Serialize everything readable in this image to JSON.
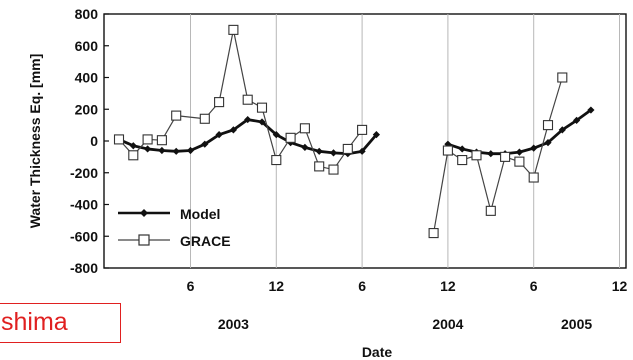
{
  "chart_data": {
    "type": "line",
    "title": "",
    "xlabel": "Date",
    "ylabel": "Water Thickness Eq. [mm]",
    "ylim": [
      -800,
      800
    ],
    "yticks": [
      -800,
      -600,
      -400,
      -200,
      0,
      200,
      400,
      600,
      800
    ],
    "xlim_months": [
      0,
      31
    ],
    "x_ticks": [
      {
        "month": 6,
        "label": "6"
      },
      {
        "month": 12,
        "label": "12"
      },
      {
        "month": 18,
        "label": "6"
      },
      {
        "month": 24,
        "label": "12"
      },
      {
        "month": 30,
        "label": "6"
      },
      {
        "month": 36,
        "label": "12"
      }
    ],
    "year_labels": [
      {
        "month": 9,
        "label": "2003"
      },
      {
        "month": 24,
        "label": "2004"
      },
      {
        "month": 33,
        "label": "2005"
      }
    ],
    "grid": {
      "x": true,
      "y": false
    },
    "legend_position": "bottom-left",
    "series": [
      {
        "name": "Model",
        "marker": "filled-diamond",
        "color": "#111111",
        "segments": [
          [
            {
              "x": "2003-01",
              "y": 10
            },
            {
              "x": "2003-02",
              "y": -30
            },
            {
              "x": "2003-03",
              "y": -50
            },
            {
              "x": "2003-04",
              "y": -60
            },
            {
              "x": "2003-05",
              "y": -65
            },
            {
              "x": "2003-06",
              "y": -60
            },
            {
              "x": "2003-07",
              "y": -20
            },
            {
              "x": "2003-08",
              "y": 40
            },
            {
              "x": "2003-09",
              "y": 70
            },
            {
              "x": "2003-10",
              "y": 135
            },
            {
              "x": "2003-11",
              "y": 120
            },
            {
              "x": "2003-12",
              "y": 40
            },
            {
              "x": "2004-01",
              "y": -10
            },
            {
              "x": "2004-02",
              "y": -40
            },
            {
              "x": "2004-03",
              "y": -65
            },
            {
              "x": "2004-04",
              "y": -75
            },
            {
              "x": "2004-05",
              "y": -80
            },
            {
              "x": "2004-06",
              "y": -65
            },
            {
              "x": "2004-07",
              "y": 40
            }
          ],
          [
            {
              "x": "2004-12",
              "y": -20
            },
            {
              "x": "2005-01",
              "y": -50
            },
            {
              "x": "2005-02",
              "y": -70
            },
            {
              "x": "2005-03",
              "y": -80
            },
            {
              "x": "2005-04",
              "y": -80
            },
            {
              "x": "2005-05",
              "y": -70
            },
            {
              "x": "2005-06",
              "y": -45
            },
            {
              "x": "2005-07",
              "y": -10
            },
            {
              "x": "2005-08",
              "y": 70
            },
            {
              "x": "2005-09",
              "y": 130
            },
            {
              "x": "2005-10",
              "y": 195
            }
          ]
        ]
      },
      {
        "name": "GRACE",
        "marker": "open-square",
        "color": "#444444",
        "segments": [
          [
            {
              "x": "2003-01",
              "y": 10
            },
            {
              "x": "2003-02",
              "y": -90
            },
            {
              "x": "2003-03",
              "y": 10
            },
            {
              "x": "2003-04",
              "y": 5
            },
            {
              "x": "2003-05",
              "y": 160
            },
            {
              "x": "2003-07",
              "y": 140
            },
            {
              "x": "2003-08",
              "y": 245
            },
            {
              "x": "2003-09",
              "y": 700
            },
            {
              "x": "2003-10",
              "y": 260
            },
            {
              "x": "2003-11",
              "y": 210
            },
            {
              "x": "2003-12",
              "y": -120
            },
            {
              "x": "2004-01",
              "y": 20
            },
            {
              "x": "2004-02",
              "y": 80
            },
            {
              "x": "2004-03",
              "y": -160
            },
            {
              "x": "2004-04",
              "y": -180
            },
            {
              "x": "2004-05",
              "y": -50
            },
            {
              "x": "2004-06",
              "y": 70
            }
          ],
          [
            {
              "x": "2004-11",
              "y": -580
            },
            {
              "x": "2004-12",
              "y": -60
            },
            {
              "x": "2005-01",
              "y": -120
            },
            {
              "x": "2005-02",
              "y": -90
            },
            {
              "x": "2005-03",
              "y": -440
            },
            {
              "x": "2005-04",
              "y": -100
            },
            {
              "x": "2005-05",
              "y": -130
            },
            {
              "x": "2005-06",
              "y": -230
            },
            {
              "x": "2005-07",
              "y": 100
            },
            {
              "x": "2005-08",
              "y": 400
            }
          ]
        ]
      }
    ]
  },
  "overlay": {
    "text": "shima",
    "color": "#e02020"
  }
}
